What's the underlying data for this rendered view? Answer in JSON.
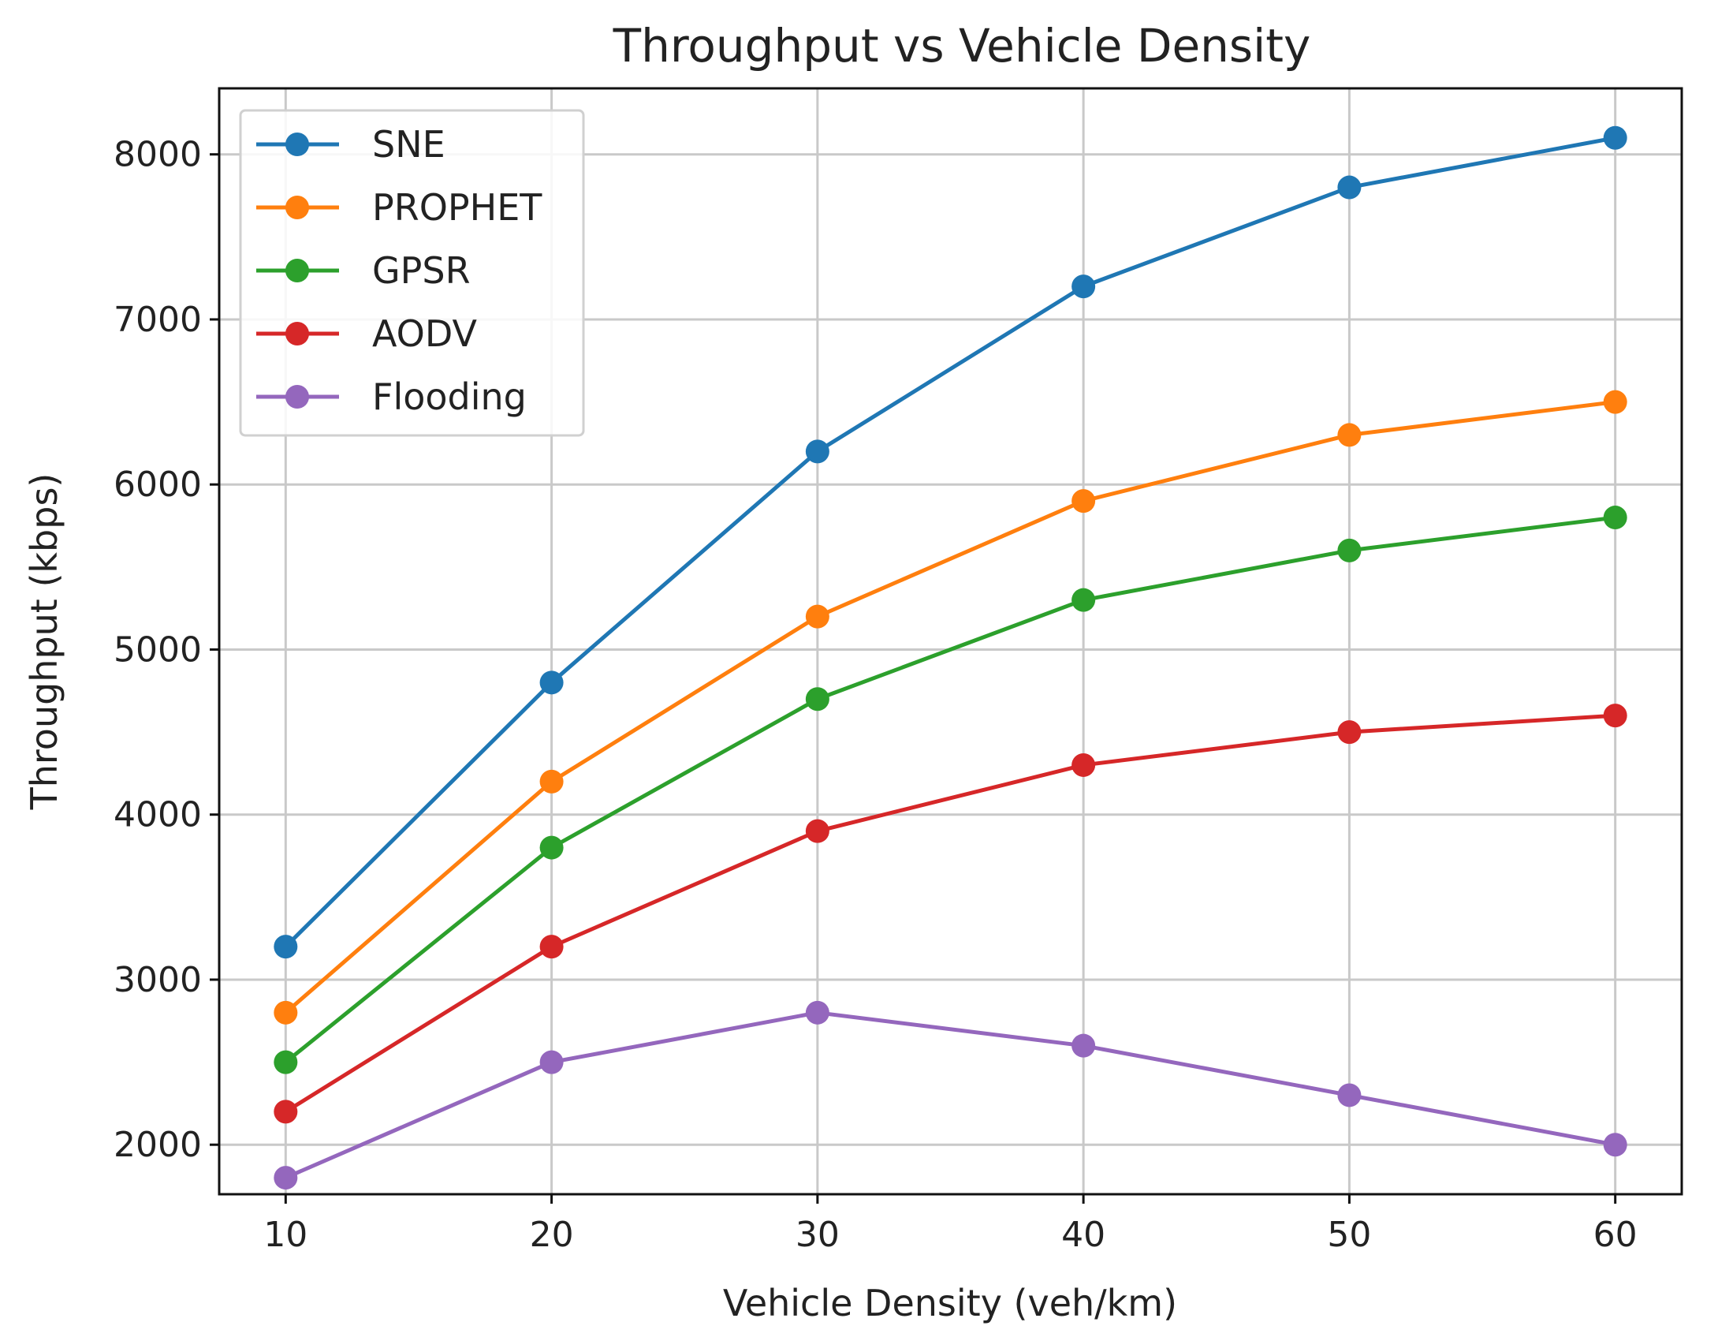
{
  "chart_data": {
    "type": "line",
    "title": "Throughput vs Vehicle Density",
    "xlabel": "Vehicle Density (veh/km)",
    "ylabel": "Throughput (kbps)",
    "x": [
      10,
      20,
      30,
      40,
      50,
      60
    ],
    "xlim": [
      7.5,
      62.5
    ],
    "ylim": [
      1700,
      8400
    ],
    "xticks": [
      10,
      20,
      30,
      40,
      50,
      60
    ],
    "yticks": [
      2000,
      3000,
      4000,
      5000,
      6000,
      7000,
      8000
    ],
    "grid": true,
    "legend_position": "top-left",
    "series": [
      {
        "name": "SNE",
        "color": "#1f77b4",
        "values": [
          3200,
          4800,
          6200,
          7200,
          7800,
          8100
        ]
      },
      {
        "name": "PROPHET",
        "color": "#ff7f0e",
        "values": [
          2800,
          4200,
          5200,
          5900,
          6300,
          6500
        ]
      },
      {
        "name": "GPSR",
        "color": "#2ca02c",
        "values": [
          2500,
          3800,
          4700,
          5300,
          5600,
          5800
        ]
      },
      {
        "name": "AODV",
        "color": "#d62728",
        "values": [
          2200,
          3200,
          3900,
          4300,
          4500,
          4600
        ]
      },
      {
        "name": "Flooding",
        "color": "#9467bd",
        "values": [
          1800,
          2500,
          2800,
          2600,
          2300,
          2000
        ]
      }
    ]
  }
}
